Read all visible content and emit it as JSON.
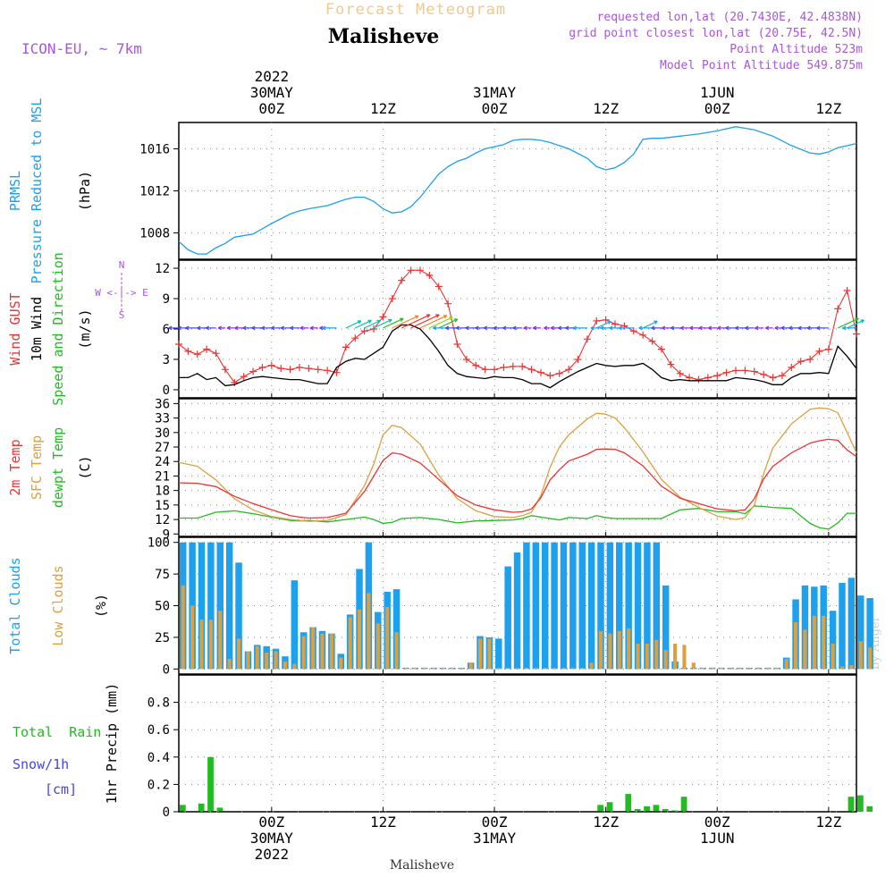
{
  "header": {
    "forecast_title": "Forecast Meteogram",
    "location": "Malisheve",
    "model": "ICON-EU, ~ 7km",
    "requested": "requested lon,lat (20.7430E, 42.4838N)",
    "grid": "grid point closest lon,lat (20.75E, 42.5N)",
    "point_alt": "Point Altitude 523m",
    "model_alt": "Model Point Altitude 549.875m",
    "watermark": "by Angel",
    "footer_location": "Malisheve"
  },
  "colors": {
    "blue": "#1da0ee",
    "red": "#ee3333",
    "black": "#000000",
    "green": "#22bb22",
    "orange": "#dda040",
    "purple": "#aa55dd",
    "title": "#f2c98a",
    "snowblue": "#4444ee"
  },
  "time_axis": {
    "hours_total": 63,
    "top_labels": [
      {
        "h": 0,
        "lines": [
          "2022",
          "30MAY",
          "00Z"
        ]
      },
      {
        "h": 12,
        "lines": [
          "12Z"
        ]
      },
      {
        "h": 24,
        "lines": [
          "31MAY",
          "00Z"
        ]
      },
      {
        "h": 36,
        "lines": [
          "12Z"
        ]
      },
      {
        "h": 48,
        "lines": [
          "1JUN",
          "00Z"
        ]
      },
      {
        "h": 60,
        "lines": [
          "12Z"
        ]
      }
    ],
    "bottom_labels": [
      {
        "h": 0,
        "lines": [
          "00Z",
          "30MAY",
          "2022"
        ]
      },
      {
        "h": 12,
        "lines": [
          "12Z"
        ]
      },
      {
        "h": 24,
        "lines": [
          "00Z",
          "31MAY"
        ]
      },
      {
        "h": 36,
        "lines": [
          "12Z"
        ]
      },
      {
        "h": 48,
        "lines": [
          "00Z",
          "1JUN"
        ]
      },
      {
        "h": 60,
        "lines": [
          "12Z"
        ]
      }
    ]
  },
  "panels": {
    "pressure": {
      "ylabels": [
        {
          "text": "PRMSL",
          "color": "blue"
        },
        {
          "text": "Pressure Reduced to MSL",
          "color": "blue"
        },
        {
          "text": "(hPa)",
          "color": "black"
        }
      ],
      "ylim": [
        1005.5,
        1018.5
      ],
      "yticks": [
        1008,
        1012,
        1016
      ]
    },
    "wind": {
      "ylabels": [
        {
          "text": "Wind GUST",
          "color": "red"
        },
        {
          "text": "10m Wind",
          "color": "black"
        },
        {
          "text": "Speed and Direction",
          "color": "green"
        },
        {
          "text": "(m/s)",
          "color": "black"
        }
      ],
      "compass": {
        "n": "N",
        "s": "S",
        "w": "W",
        "e": "E",
        "row": "W <-|-> E"
      },
      "ylim": [
        -0.8,
        12.8
      ],
      "yticks": [
        0,
        3,
        6,
        9,
        12
      ]
    },
    "temp": {
      "ylabels": [
        {
          "text": "2m Temp",
          "color": "red"
        },
        {
          "text": "SFC Temp",
          "color": "orange"
        },
        {
          "text": "dewpt Temp",
          "color": "green"
        },
        {
          "text": "(C)",
          "color": "black"
        }
      ],
      "ylim": [
        8.5,
        37
      ],
      "yticks": [
        9,
        12,
        15,
        18,
        21,
        24,
        27,
        30,
        33,
        36
      ]
    },
    "clouds": {
      "ylabels": [
        {
          "text": "Total Clouds",
          "color": "blue"
        },
        {
          "text": "Low Clouds",
          "color": "orange"
        },
        {
          "text": "(%)",
          "color": "black"
        }
      ],
      "ylim": [
        -4,
        104
      ],
      "yticks": [
        0,
        25,
        50,
        75,
        100
      ]
    },
    "precip": {
      "ylabels": [
        {
          "text": "1hr Precip (mm)",
          "color": "black"
        }
      ],
      "legend": [
        {
          "text": "Total  Rain",
          "color": "green"
        },
        {
          "text": "Snow/1h",
          "color": "snowblue"
        },
        {
          "text": "[cm]",
          "color": "snowblue"
        }
      ],
      "ylim": [
        0,
        1.0
      ],
      "yticks": [
        "0",
        "0.2",
        "0.4",
        "0.6",
        "0.8"
      ]
    }
  },
  "chart_data": [
    {
      "type": "line",
      "title": "PRMSL Pressure Reduced to MSL",
      "ylabel": "hPa",
      "x_hours": [
        -10,
        -9,
        -8,
        -7,
        -6,
        -5,
        -4,
        -2,
        0,
        2,
        3,
        4,
        6,
        8,
        9,
        10,
        11,
        12,
        13,
        14,
        15,
        16,
        17,
        18,
        19,
        20,
        21,
        22,
        23,
        24,
        25,
        26,
        27,
        28,
        29,
        30,
        32,
        34,
        35,
        36,
        37,
        38,
        39,
        40,
        41,
        42,
        44,
        46,
        48,
        50,
        52,
        54,
        56,
        58,
        59,
        60,
        61,
        62,
        63
      ],
      "series": [
        {
          "name": "PRMSL",
          "color": "blue",
          "values": [
            1007.2,
            1006.4,
            1006.0,
            1006.0,
            1006.6,
            1007.0,
            1007.6,
            1007.9,
            1008.9,
            1009.8,
            1010.1,
            1010.3,
            1010.6,
            1011.2,
            1011.4,
            1011.4,
            1011.0,
            1010.3,
            1009.9,
            1010.0,
            1010.5,
            1011.4,
            1012.5,
            1013.6,
            1014.3,
            1014.8,
            1015.1,
            1015.6,
            1016.0,
            1016.2,
            1016.4,
            1016.8,
            1016.9,
            1016.9,
            1016.8,
            1016.6,
            1016.0,
            1015.1,
            1014.3,
            1014.0,
            1014.2,
            1014.7,
            1015.5,
            1016.9,
            1017.0,
            1017.0,
            1017.2,
            1017.4,
            1017.7,
            1018.1,
            1017.8,
            1017.2,
            1016.3,
            1015.6,
            1015.5,
            1015.7,
            1016.1,
            1016.3,
            1016.5
          ]
        }
      ]
    },
    {
      "type": "line",
      "title": "Wind GUST / 10m Wind",
      "ylabel": "m/s",
      "x_hours": [
        -10,
        -9,
        -8,
        -7,
        -6,
        -5,
        -4,
        -3,
        -2,
        -1,
        0,
        1,
        2,
        3,
        4,
        5,
        6,
        7,
        8,
        9,
        10,
        11,
        12,
        13,
        14,
        15,
        16,
        17,
        18,
        19,
        20,
        21,
        22,
        23,
        24,
        25,
        26,
        27,
        28,
        29,
        30,
        31,
        32,
        33,
        34,
        35,
        36,
        37,
        38,
        39,
        40,
        41,
        42,
        43,
        44,
        45,
        46,
        47,
        48,
        49,
        50,
        51,
        52,
        53,
        54,
        55,
        56,
        57,
        58,
        59,
        60,
        61,
        62,
        63
      ],
      "series": [
        {
          "name": "Wind GUST",
          "color": "red",
          "values": [
            4.5,
            3.8,
            3.5,
            4.0,
            3.6,
            2.0,
            0.7,
            1.3,
            1.8,
            2.2,
            2.4,
            2.1,
            2.0,
            2.2,
            2.1,
            2.0,
            1.9,
            1.7,
            4.2,
            5.1,
            5.8,
            6.0,
            7.2,
            9.0,
            10.8,
            11.8,
            11.8,
            11.3,
            10.2,
            8.5,
            4.5,
            3.0,
            2.4,
            2.0,
            2.0,
            2.2,
            2.3,
            2.3,
            2.0,
            1.7,
            1.4,
            1.6,
            2.0,
            3.0,
            5.0,
            6.8,
            6.9,
            6.5,
            6.3,
            5.8,
            5.4,
            4.8,
            4.0,
            2.5,
            1.6,
            1.2,
            1.0,
            1.2,
            1.4,
            1.7,
            1.9,
            1.9,
            1.8,
            1.5,
            1.2,
            1.4,
            2.2,
            2.8,
            3.0,
            3.8,
            4.0,
            8.0,
            9.8,
            5.5
          ]
        },
        {
          "name": "10m Wind",
          "color": "black",
          "values": [
            1.2,
            1.2,
            1.6,
            1.0,
            1.2,
            0.4,
            0.5,
            0.9,
            1.2,
            1.3,
            1.2,
            1.1,
            1.0,
            1.0,
            0.8,
            0.6,
            0.6,
            2.2,
            2.8,
            3.1,
            3.0,
            3.6,
            4.2,
            5.8,
            6.4,
            6.4,
            6.0,
            5.0,
            3.8,
            2.4,
            1.6,
            1.3,
            1.2,
            1.1,
            1.3,
            1.2,
            1.2,
            1.0,
            0.6,
            0.6,
            0.2,
            0.8,
            1.3,
            1.8,
            2.2,
            2.6,
            2.4,
            2.3,
            2.4,
            2.4,
            2.6,
            2.0,
            1.2,
            0.9,
            1.0,
            0.9,
            0.9,
            0.9,
            0.9,
            0.9,
            1.2,
            1.1,
            1.0,
            0.8,
            0.5,
            0.5,
            1.2,
            1.6,
            1.6,
            1.7,
            1.6,
            4.3,
            3.3,
            2.1
          ]
        }
      ]
    },
    {
      "type": "line",
      "title": "2m Temp / SFC Temp / dewpt Temp",
      "ylabel": "C",
      "x_hours": [
        -10,
        -8,
        -6,
        -4,
        -2,
        0,
        2,
        3,
        4,
        6,
        8,
        10,
        11,
        12,
        13,
        14,
        16,
        18,
        20,
        22,
        24,
        26,
        27,
        28,
        29,
        30,
        31,
        32,
        34,
        35,
        36,
        37,
        38,
        40,
        42,
        44,
        46,
        48,
        50,
        51,
        52,
        53,
        54,
        56,
        58,
        59,
        60,
        61,
        62,
        63
      ],
      "series": [
        {
          "name": "2m Temp",
          "color": "red",
          "values": [
            19.6,
            19.5,
            18.8,
            16.8,
            15.3,
            14.0,
            12.8,
            12.5,
            12.3,
            12.4,
            13.3,
            17.8,
            21.0,
            24.2,
            25.8,
            25.5,
            23.7,
            20.3,
            16.9,
            15.0,
            14.0,
            13.5,
            13.6,
            14.2,
            16.5,
            20.2,
            22.3,
            24.1,
            25.5,
            26.5,
            26.6,
            26.5,
            25.8,
            23.1,
            18.9,
            16.4,
            15.3,
            14.2,
            13.8,
            14.0,
            16.3,
            20.4,
            23.0,
            25.8,
            27.8,
            28.3,
            28.6,
            28.4,
            26.4,
            25.0
          ]
        },
        {
          "name": "SFC Temp",
          "color": "orange",
          "values": [
            23.8,
            23.0,
            20.2,
            16.3,
            14.0,
            12.6,
            12.0,
            11.8,
            11.6,
            11.8,
            13.0,
            19.0,
            23.5,
            29.5,
            31.5,
            31.0,
            27.6,
            21.2,
            16.3,
            13.8,
            12.6,
            12.4,
            12.8,
            13.5,
            17.0,
            22.8,
            27.0,
            29.5,
            32.8,
            34.0,
            33.8,
            33.0,
            31.0,
            26.0,
            20.3,
            16.6,
            14.5,
            12.7,
            12.0,
            12.4,
            15.0,
            21.5,
            26.8,
            31.8,
            34.8,
            35.1,
            34.9,
            34.1,
            30.0,
            25.8
          ]
        },
        {
          "name": "dewpt Temp",
          "color": "green",
          "values": [
            12.3,
            12.3,
            13.5,
            13.8,
            13.2,
            12.5,
            11.8,
            11.7,
            11.8,
            11.5,
            12.0,
            12.5,
            12.0,
            11.2,
            11.4,
            12.2,
            12.4,
            12.0,
            11.3,
            11.7,
            11.8,
            11.9,
            12.2,
            12.8,
            12.5,
            12.2,
            11.9,
            12.4,
            12.2,
            12.8,
            12.4,
            12.2,
            12.2,
            12.2,
            12.2,
            14.0,
            14.3,
            13.6,
            13.6,
            13.2,
            14.8,
            14.7,
            14.5,
            14.3,
            11.2,
            10.3,
            10.0,
            11.3,
            13.3,
            13.3
          ]
        }
      ]
    },
    {
      "type": "bar",
      "title": "Total Clouds / Low Clouds",
      "ylabel": "%",
      "start_hour": -10,
      "step_hours": 1,
      "series": [
        {
          "name": "Total Clouds",
          "color": "blue",
          "values": [
            100,
            100,
            100,
            100,
            100,
            100,
            84,
            14,
            19,
            18,
            16,
            10,
            70,
            29,
            33,
            30,
            28,
            12,
            43,
            79,
            100,
            45,
            61,
            63,
            1,
            1,
            1,
            1,
            1,
            1,
            1,
            5,
            26,
            25,
            24,
            81,
            92,
            100,
            100,
            100,
            100,
            100,
            100,
            100,
            100,
            100,
            100,
            100,
            100,
            100,
            100,
            100,
            66,
            6,
            1,
            1,
            1,
            1,
            1,
            1,
            1,
            1,
            1,
            1,
            1,
            9,
            55,
            66,
            65,
            66,
            46,
            68,
            72,
            58,
            56
          ]
        },
        {
          "name": "Low Clouds",
          "color": "orange",
          "values": [
            66,
            50,
            39,
            39,
            46,
            8,
            24,
            14,
            18,
            13,
            14,
            6,
            4,
            26,
            33,
            28,
            28,
            9,
            41,
            47,
            60,
            36,
            49,
            29,
            1,
            1,
            1,
            1,
            1,
            1,
            1,
            5,
            24,
            24,
            1,
            1,
            1,
            1,
            1,
            1,
            1,
            1,
            1,
            1,
            5,
            30,
            28,
            30,
            32,
            20,
            20,
            23,
            15,
            20,
            19,
            5,
            1,
            1,
            1,
            1,
            1,
            1,
            1,
            1,
            1,
            8,
            37,
            31,
            42,
            42,
            20,
            2,
            3,
            22,
            17
          ]
        }
      ]
    },
    {
      "type": "bar",
      "title": "1hr Precip",
      "ylabel": "mm",
      "start_hour": -10,
      "step_hours": 1,
      "series": [
        {
          "name": "Total Rain",
          "color": "green",
          "values": [
            0.05,
            0,
            0.06,
            0.4,
            0.03,
            0,
            0,
            0,
            0,
            0,
            0,
            0,
            0,
            0,
            0,
            0,
            0,
            0,
            0,
            0,
            0,
            0,
            0,
            0,
            0,
            0,
            0,
            0,
            0,
            0,
            0,
            0,
            0,
            0,
            0,
            0,
            0,
            0,
            0,
            0,
            0,
            0,
            0,
            0,
            0,
            0.05,
            0.07,
            0,
            0.13,
            0.02,
            0.04,
            0.05,
            0.02,
            0.01,
            0.11,
            0,
            0,
            0,
            0,
            0,
            0,
            0,
            0,
            0,
            0,
            0,
            0,
            0,
            0,
            0,
            0,
            0,
            0.11,
            0.12,
            0.04
          ]
        }
      ]
    }
  ]
}
